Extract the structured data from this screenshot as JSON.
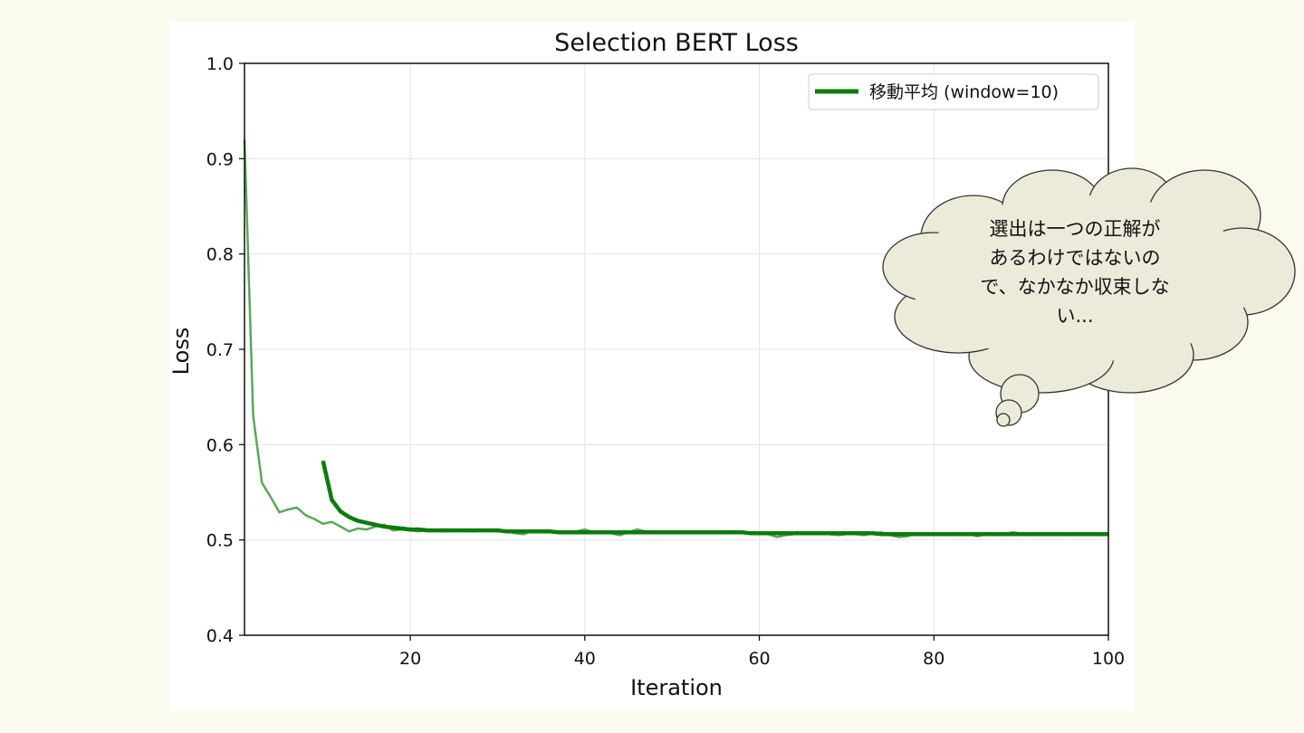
{
  "chart_data": {
    "type": "line",
    "title": "Selection BERT Loss",
    "xlabel": "Iteration",
    "ylabel": "Loss",
    "xlim": [
      1,
      100
    ],
    "ylim": [
      0.4,
      1.0
    ],
    "xticks": [
      20,
      40,
      60,
      80,
      100
    ],
    "xtick_labels": [
      "20",
      "40",
      "60",
      "80",
      "100"
    ],
    "yticks": [
      0.4,
      0.5,
      0.6,
      0.7,
      0.8,
      0.9,
      1.0
    ],
    "ytick_labels": [
      "0.4",
      "0.5",
      "0.6",
      "0.7",
      "0.8",
      "0.9",
      "1.0"
    ],
    "grid": true,
    "legend_position": "top-right",
    "series": [
      {
        "name": "",
        "color": "#5aa85a",
        "x_start": 1,
        "values": [
          0.92,
          0.63,
          0.56,
          0.545,
          0.529,
          0.532,
          0.534,
          0.526,
          0.522,
          0.517,
          0.519,
          0.514,
          0.509,
          0.512,
          0.511,
          0.514,
          0.516,
          0.51,
          0.511,
          0.51,
          0.509,
          0.511,
          0.51,
          0.509,
          0.511,
          0.51,
          0.509,
          0.51,
          0.511,
          0.509,
          0.509,
          0.507,
          0.506,
          0.51,
          0.508,
          0.509,
          0.508,
          0.507,
          0.509,
          0.511,
          0.508,
          0.509,
          0.507,
          0.505,
          0.508,
          0.511,
          0.509,
          0.508,
          0.508,
          0.509,
          0.508,
          0.507,
          0.507,
          0.508,
          0.509,
          0.507,
          0.508,
          0.509,
          0.507,
          0.508,
          0.506,
          0.503,
          0.505,
          0.506,
          0.506,
          0.507,
          0.507,
          0.506,
          0.505,
          0.506,
          0.506,
          0.505,
          0.507,
          0.508,
          0.505,
          0.503,
          0.504,
          0.507,
          0.506,
          0.506,
          0.506,
          0.505,
          0.507,
          0.506,
          0.504,
          0.506,
          0.505,
          0.506,
          0.508,
          0.507,
          0.505,
          0.506,
          0.507,
          0.506,
          0.505,
          0.507,
          0.506,
          0.506,
          0.505,
          0.506
        ]
      },
      {
        "name": "移動平均 (window=10)",
        "color": "#0a7d0a",
        "x_start": 10,
        "values": [
          0.583,
          0.542,
          0.53,
          0.524,
          0.52,
          0.518,
          0.516,
          0.514,
          0.513,
          0.512,
          0.511,
          0.511,
          0.51,
          0.51,
          0.51,
          0.51,
          0.51,
          0.51,
          0.51,
          0.51,
          0.51,
          0.509,
          0.509,
          0.509,
          0.509,
          0.509,
          0.509,
          0.508,
          0.508,
          0.508,
          0.508,
          0.508,
          0.508,
          0.508,
          0.508,
          0.508,
          0.508,
          0.508,
          0.508,
          0.508,
          0.508,
          0.508,
          0.508,
          0.508,
          0.508,
          0.508,
          0.508,
          0.508,
          0.508,
          0.507,
          0.507,
          0.507,
          0.507,
          0.507,
          0.507,
          0.507,
          0.507,
          0.507,
          0.507,
          0.507,
          0.507,
          0.507,
          0.507,
          0.507,
          0.506,
          0.506,
          0.506,
          0.506,
          0.506,
          0.506,
          0.506,
          0.506,
          0.506,
          0.506,
          0.506,
          0.506,
          0.506,
          0.506,
          0.506,
          0.506,
          0.506,
          0.506,
          0.506,
          0.506,
          0.506,
          0.506,
          0.506,
          0.506,
          0.506,
          0.506,
          0.506
        ]
      }
    ],
    "annotation": {
      "type": "thought-bubble",
      "lines": [
        "選出は一つの正解が",
        "あるわけではないの",
        "で、なかなか収束しな",
        "い..."
      ],
      "fill": "#ecebd9",
      "stroke": "#333333"
    }
  }
}
